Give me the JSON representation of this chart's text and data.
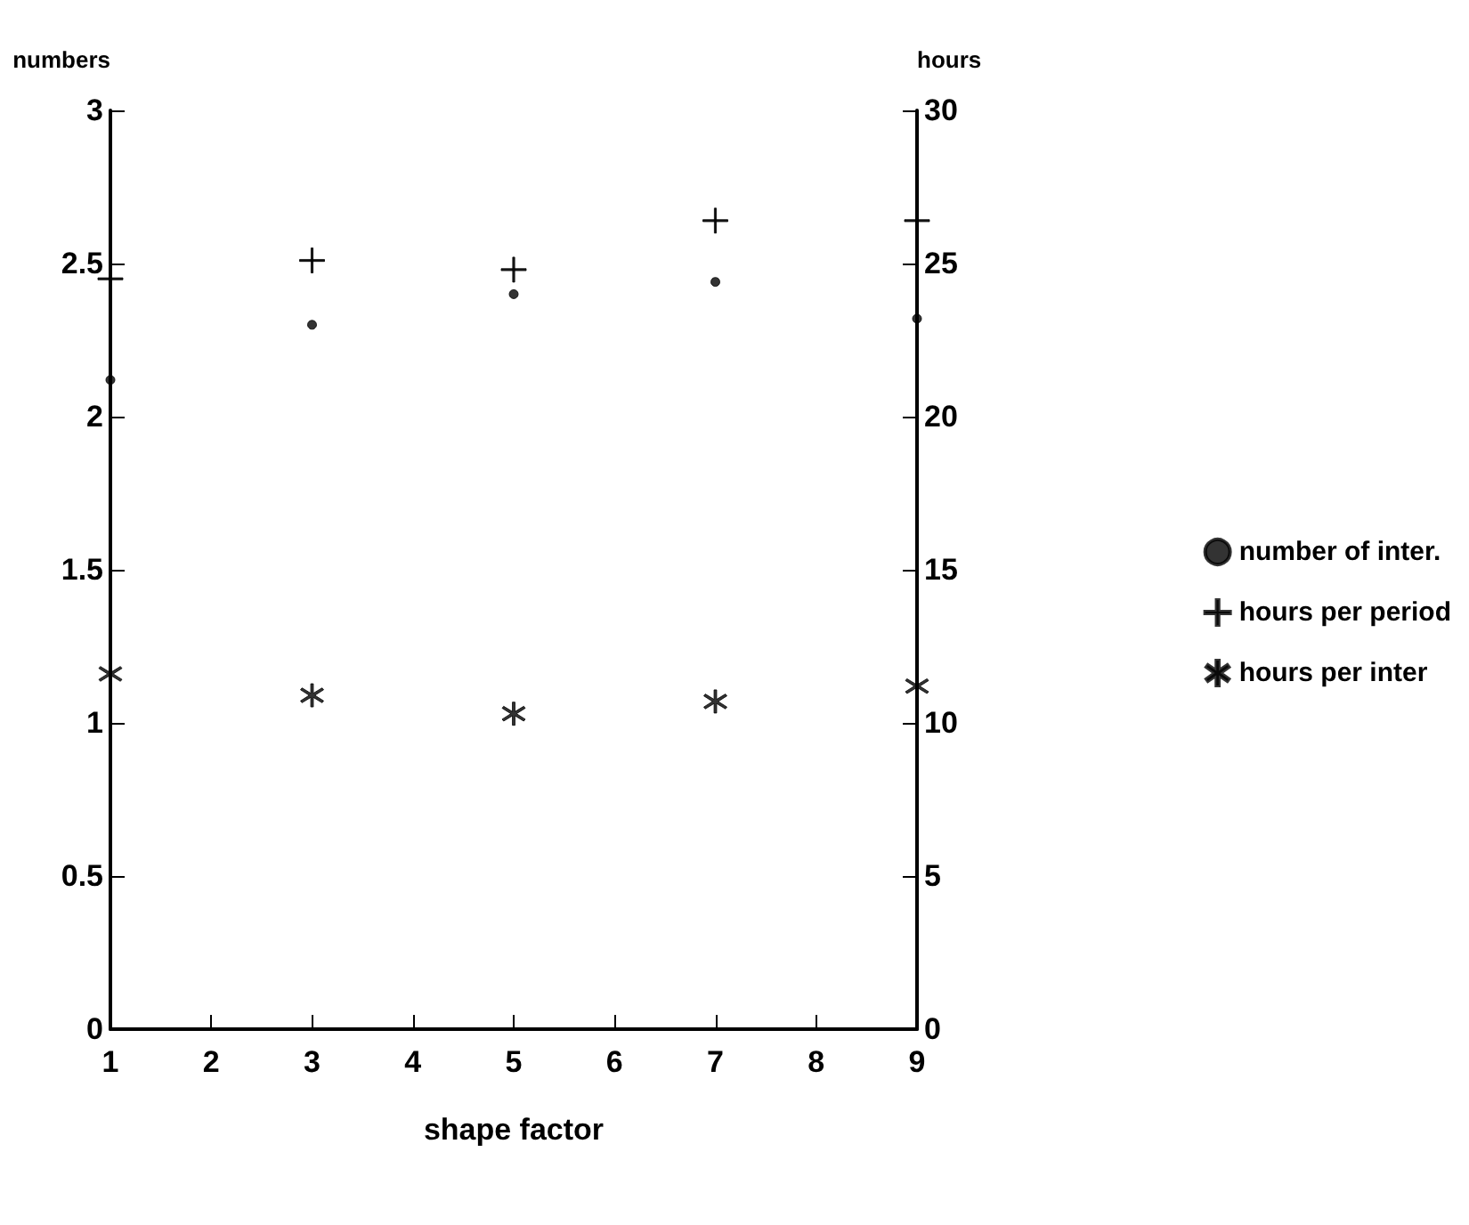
{
  "chart_data": {
    "type": "scatter",
    "xlabel": "shape factor",
    "ylabel": "numbers",
    "y2label": "hours",
    "x": [
      1,
      3,
      5,
      7,
      9
    ],
    "series": [
      {
        "name": "number of inter.",
        "color": "#000000",
        "marker": "circle",
        "values": [
          2.12,
          2.3,
          2.4,
          2.44,
          2.32
        ]
      },
      {
        "name": "hours per period",
        "color": "#000000",
        "marker": "cross",
        "axis": "y2",
        "values": [
          24.5,
          25.1,
          24.8,
          26.4,
          26.4
        ]
      },
      {
        "name": "hours per inter",
        "color": "#000000",
        "marker": "star",
        "axis": "y2",
        "values": [
          11.6,
          10.9,
          10.3,
          10.7,
          11.2
        ]
      }
    ],
    "xlim": [
      1,
      9
    ],
    "xticks": [
      1,
      2,
      3,
      4,
      5,
      6,
      7,
      8,
      9
    ],
    "ylim": [
      0,
      3
    ],
    "yticks": [
      0,
      0.5,
      1,
      1.5,
      2,
      2.5,
      3
    ],
    "y2lim": [
      0,
      30
    ],
    "y2ticks": [
      0,
      5,
      10,
      15,
      20,
      25,
      30
    ],
    "grid": false,
    "legend": "right"
  }
}
